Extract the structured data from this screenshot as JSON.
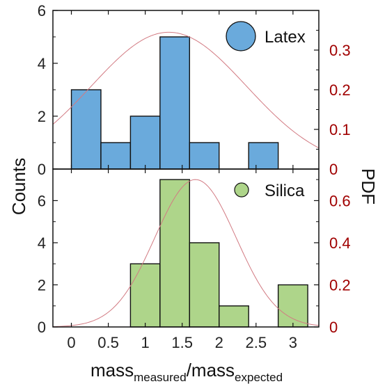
{
  "chart_data": {
    "type": "bar",
    "layout": "two stacked histogram panels sharing x axis, with dual y axes",
    "xlabel_parts": {
      "base1": "mass",
      "sub1": "measured",
      "sep": "/",
      "base2": "mass",
      "sub2": "expected"
    },
    "ylabel_left": "Counts",
    "ylabel_right": "PDF",
    "xlim": [
      -0.25,
      3.35
    ],
    "x_ticks": [
      "0",
      "0.5",
      "1",
      "1.5",
      "2",
      "2.5",
      "3"
    ],
    "x_tick_values": [
      0,
      0.5,
      1,
      1.5,
      2,
      2.5,
      3
    ],
    "panels": [
      {
        "name": "Latex",
        "legend": "Latex",
        "bar_color": "#6aaadc",
        "legend_marker": "circle",
        "bin_edges": [
          0,
          0.4,
          0.8,
          1.2,
          1.6,
          2.0,
          2.4,
          2.8
        ],
        "counts": [
          3,
          1,
          2,
          5,
          1,
          0,
          1
        ],
        "ylim_left": [
          0,
          6
        ],
        "left_ticks": [
          0,
          2,
          4,
          6
        ],
        "ylim_right": [
          0,
          0.4
        ],
        "right_ticks": [
          0,
          0.1,
          0.2,
          0.3
        ],
        "right_tick_labels": [
          "0",
          "0.1",
          "0.2",
          "0.3"
        ],
        "pdf": {
          "mean": 1.32,
          "std": 1.05,
          "peak": 0.345,
          "color": "#d27a82"
        }
      },
      {
        "name": "Silica",
        "legend": "Silica",
        "bar_color": "#aed58a",
        "legend_marker": "circle",
        "bin_edges": [
          0.8,
          1.2,
          1.6,
          2.0,
          2.4,
          2.8,
          3.2
        ],
        "counts": [
          3,
          7,
          4,
          1,
          0,
          2
        ],
        "ylim_left": [
          0,
          7.5
        ],
        "left_ticks": [
          0,
          2,
          4,
          6
        ],
        "ylim_right": [
          0,
          0.75
        ],
        "right_ticks": [
          0,
          0.2,
          0.4,
          0.6
        ],
        "right_tick_labels": [
          "0",
          "0.2",
          "0.4",
          "0.6"
        ],
        "pdf": {
          "mean": 1.68,
          "std": 0.55,
          "peak": 0.7,
          "color": "#d27a82"
        }
      }
    ],
    "colors": {
      "right_axis": "#a00000",
      "bar_edge": "#111111",
      "axis": "#111111"
    }
  }
}
